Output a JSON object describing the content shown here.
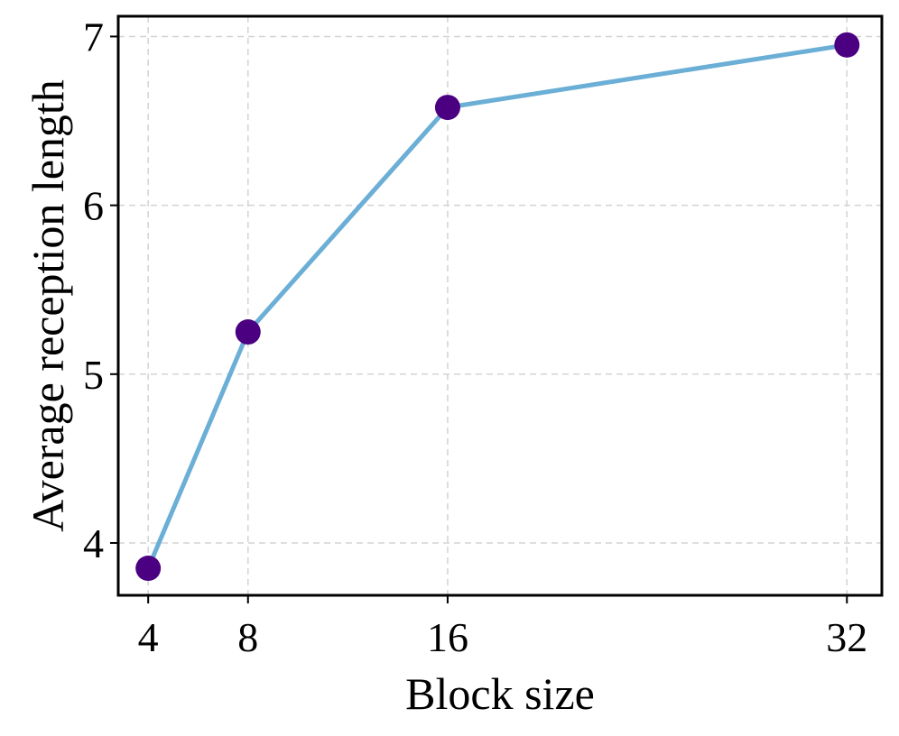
{
  "chart_data": {
    "type": "line",
    "title": "",
    "xlabel": "Block size",
    "ylabel": "Average reception length",
    "x": [
      4,
      8,
      16,
      32
    ],
    "xticks": [
      4,
      8,
      16,
      32
    ],
    "xtick_labels": [
      "4",
      "8",
      "16",
      "32"
    ],
    "yticks": [
      4,
      5,
      6,
      7
    ],
    "ytick_labels": [
      "4",
      "5",
      "6",
      "7"
    ],
    "xlim": [
      2.8,
      33.4
    ],
    "ylim": [
      3.69,
      7.12
    ],
    "grid": true,
    "series": [
      {
        "values": [
          3.85,
          5.25,
          6.58,
          6.95
        ],
        "line_color": "#6baed6",
        "marker_color": "#4b0082"
      }
    ]
  }
}
